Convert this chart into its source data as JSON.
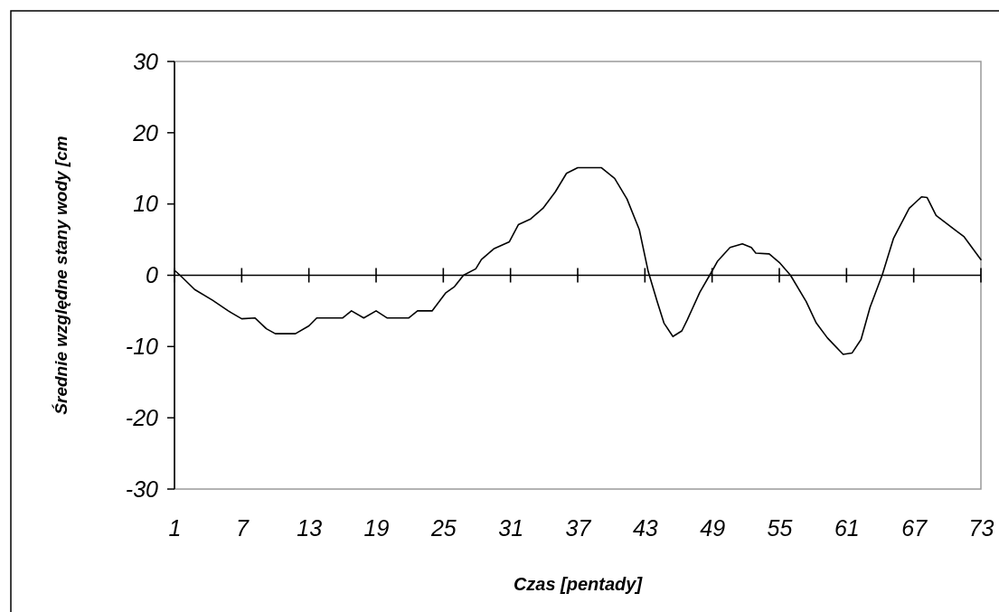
{
  "chart_data": {
    "type": "line",
    "xlabel": "Czas [pentady]",
    "ylabel": "Średnie względne stany wody  [cm",
    "x": [
      1,
      1.5,
      2.8,
      4.4,
      5.8,
      7,
      8.2,
      9.2,
      10,
      11.8,
      13,
      13.7,
      16,
      16.8,
      17.9,
      19,
      20,
      21.9,
      22.7,
      24,
      25.2,
      26,
      26.8,
      27.9,
      28.4,
      29.5,
      30.9,
      31.7,
      32.8,
      33.9,
      35,
      36,
      37,
      39.1,
      40.3,
      41.4,
      42.5,
      43.3,
      44.1,
      44.7,
      45.5,
      46.3,
      46.8,
      47.9,
      49,
      49.5,
      50.6,
      51.7,
      52.5,
      52.9,
      54.1,
      55,
      56,
      57.4,
      58.3,
      59.3,
      60.7,
      61.5,
      62.3,
      63.1,
      64.2,
      65.2,
      66.6,
      67.7,
      68.2,
      69,
      70.4,
      71.5,
      73
    ],
    "series": [
      {
        "color": "#000000",
        "values": [
          0.7,
          0,
          -2,
          -3.5,
          -5,
          -6.1,
          -6,
          -7.5,
          -8.2,
          -8.2,
          -7.1,
          -6,
          -6,
          -5,
          -6,
          -5,
          -6,
          -6,
          -5,
          -5,
          -2.5,
          -1.6,
          0,
          0.9,
          2.2,
          3.7,
          4.7,
          7.1,
          7.9,
          9.4,
          11.7,
          14.3,
          15.1,
          15.1,
          13.6,
          10.7,
          6.4,
          0.5,
          -3.7,
          -6.7,
          -8.6,
          -7.8,
          -6.2,
          -2.4,
          0.6,
          2,
          3.9,
          4.4,
          3.9,
          3.1,
          3,
          1.8,
          0,
          -3.7,
          -6.7,
          -8.8,
          -11.1,
          -10.9,
          -9,
          -4.5,
          0.1,
          5.2,
          9.4,
          11,
          10.9,
          8.4,
          6.7,
          5.4,
          2.2
        ]
      }
    ],
    "xlim": [
      1,
      73
    ],
    "xticks": [
      1,
      7,
      13,
      19,
      25,
      31,
      37,
      43,
      49,
      55,
      61,
      67,
      73
    ],
    "ylim": [
      -30,
      30
    ],
    "yticks": [
      -30,
      -20,
      -10,
      0,
      10,
      20,
      30
    ],
    "ref_lines": [
      {
        "axis": "y",
        "value": 0,
        "color": "#000000"
      }
    ],
    "grid": false,
    "marker": "none",
    "line_style": "solid"
  }
}
